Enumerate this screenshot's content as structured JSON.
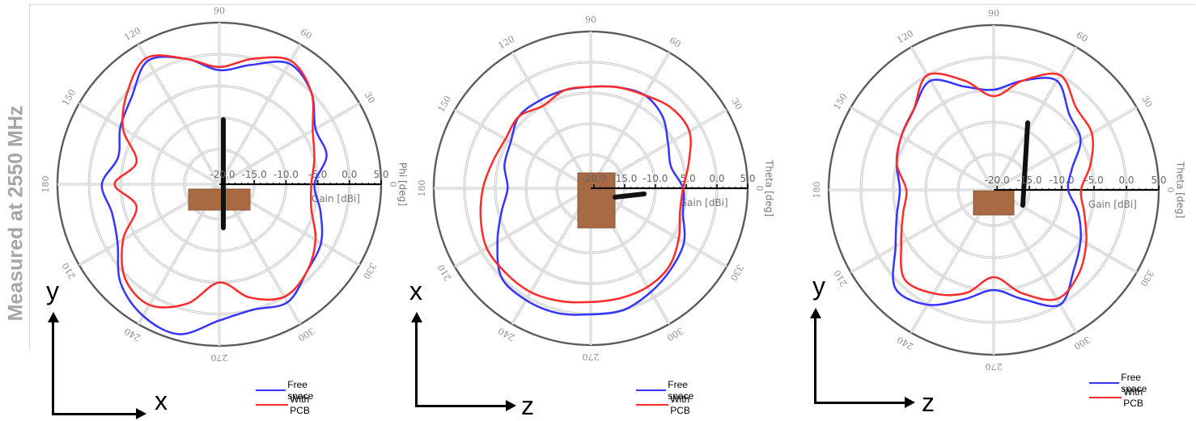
{
  "side_label": "Measured at 2550 MHz",
  "colors": {
    "free_space": "#3535ff",
    "with_pcb": "#ff2b2b",
    "grid": "#c8c8c8",
    "ring": "#555555"
  },
  "chart_data": [
    {
      "type": "polar",
      "angle_label": "Phi [deg]",
      "radial_label": "Gain [dBi]",
      "radial_ticks": [
        "-20.0",
        "-15.0",
        "-10.0",
        "-5.0",
        "0.0",
        "5.0"
      ],
      "angle_ticks": [
        "0",
        "30",
        "60",
        "90",
        "120",
        "150",
        "180",
        "210",
        "240",
        "270",
        "300",
        "330"
      ],
      "rlim": [
        -20,
        5
      ],
      "legend": [
        "Free space",
        "With PCB"
      ],
      "axes_labels": {
        "vertical": "y",
        "horizontal": "x"
      },
      "series": [
        {
          "name": "Free space",
          "angles": [
            0,
            15,
            30,
            45,
            60,
            75,
            90,
            105,
            120,
            135,
            150,
            165,
            180,
            195,
            210,
            225,
            240,
            255,
            270,
            285,
            300,
            315,
            330,
            345
          ],
          "values": [
            -5.5,
            -3,
            -3,
            0,
            1.5,
            -1,
            -2.5,
            0,
            2,
            -1,
            -2.5,
            -4,
            -2,
            -3,
            -2,
            1.5,
            3.5,
            4,
            1,
            0,
            1,
            -1,
            -2,
            -4
          ]
        },
        {
          "name": "With PCB",
          "angles": [
            0,
            15,
            30,
            45,
            60,
            75,
            90,
            105,
            120,
            135,
            150,
            165,
            180,
            195,
            210,
            225,
            240,
            255,
            270,
            285,
            300,
            315,
            330,
            345
          ],
          "values": [
            -6,
            -5,
            -3.5,
            0,
            2,
            0,
            -2,
            0,
            2.5,
            0,
            -3,
            -7,
            -4,
            -7,
            -3,
            0.5,
            1.5,
            -1,
            -5,
            -2,
            0,
            -1,
            -3,
            -5.5
          ]
        }
      ]
    },
    {
      "type": "polar",
      "angle_label": "Theta [deg]",
      "radial_label": "Gain [dBi]",
      "radial_ticks": [
        "-20.0",
        "-15.0",
        "-10.0",
        "-5.0",
        "0.0",
        "5.0"
      ],
      "angle_ticks": [
        "0",
        "30",
        "60",
        "90",
        "120",
        "150",
        "180",
        "210",
        "240",
        "270",
        "300",
        "330"
      ],
      "rlim": [
        -20,
        5
      ],
      "legend": [
        "Free space",
        "With PCB"
      ],
      "axes_labels": {
        "vertical": "x",
        "horizontal": "z"
      },
      "series": [
        {
          "name": "Free space",
          "angles": [
            0,
            15,
            30,
            45,
            60,
            75,
            90,
            105,
            120,
            135,
            150,
            165,
            180,
            195,
            210,
            225,
            240,
            255,
            270,
            285,
            300,
            315,
            330,
            345
          ],
          "values": [
            -5.5,
            -7,
            -6,
            -4,
            -3,
            -3.5,
            -4,
            -4,
            -4,
            -4,
            -5.5,
            -6,
            -7,
            -5.5,
            -3,
            0,
            0.5,
            0.5,
            0,
            0,
            -1,
            -2,
            -3,
            -5
          ]
        },
        {
          "name": "With PCB",
          "angles": [
            0,
            15,
            30,
            45,
            60,
            75,
            90,
            105,
            120,
            135,
            150,
            165,
            180,
            195,
            210,
            225,
            240,
            255,
            270,
            285,
            300,
            315,
            330,
            345
          ],
          "values": [
            -5.5,
            -4,
            -2,
            -2,
            -3,
            -3.5,
            -4,
            -4,
            -5,
            -4,
            -4.5,
            -4,
            -3,
            -2,
            -1,
            -1,
            -1,
            -1.5,
            -2,
            -2,
            -2,
            -2.5,
            -4,
            -5.5
          ]
        }
      ]
    },
    {
      "type": "polar",
      "angle_label": "Theta [deg]",
      "radial_label": "Gain [dBi]",
      "radial_ticks": [
        "-20.0",
        "-15.0",
        "-10.0",
        "-5.0",
        "0.0",
        "5.0"
      ],
      "angle_ticks": [
        "0",
        "30",
        "60",
        "90",
        "120",
        "150",
        "180",
        "210",
        "240",
        "270",
        "300",
        "330"
      ],
      "rlim": [
        -20,
        5
      ],
      "legend": [
        "Free space",
        "With PCB"
      ],
      "axes_labels": {
        "vertical": "y",
        "horizontal": "z"
      },
      "series": [
        {
          "name": "Free space",
          "angles": [
            0,
            15,
            30,
            45,
            60,
            75,
            90,
            105,
            120,
            135,
            150,
            165,
            180,
            195,
            210,
            225,
            240,
            255,
            270,
            285,
            300,
            315,
            330,
            345
          ],
          "values": [
            -9,
            -8,
            -5,
            -4,
            -1,
            -3,
            -5,
            -4,
            -1,
            -3,
            -4,
            -5,
            -6,
            -5,
            -3,
            1,
            0,
            -3,
            -5,
            -3,
            0,
            -3,
            -5,
            -7
          ]
        },
        {
          "name": "With PCB",
          "angles": [
            0,
            15,
            30,
            45,
            60,
            75,
            90,
            105,
            120,
            135,
            150,
            165,
            180,
            195,
            210,
            225,
            240,
            255,
            270,
            285,
            300,
            315,
            330,
            345
          ],
          "values": [
            -7,
            -5,
            -3,
            -2.5,
            0,
            -3,
            -6,
            -3,
            0,
            -3,
            -4,
            -5,
            -7,
            -6,
            -4,
            -1,
            -2,
            -4,
            -7,
            -4,
            -1,
            -2,
            -4,
            -6
          ]
        }
      ]
    }
  ]
}
